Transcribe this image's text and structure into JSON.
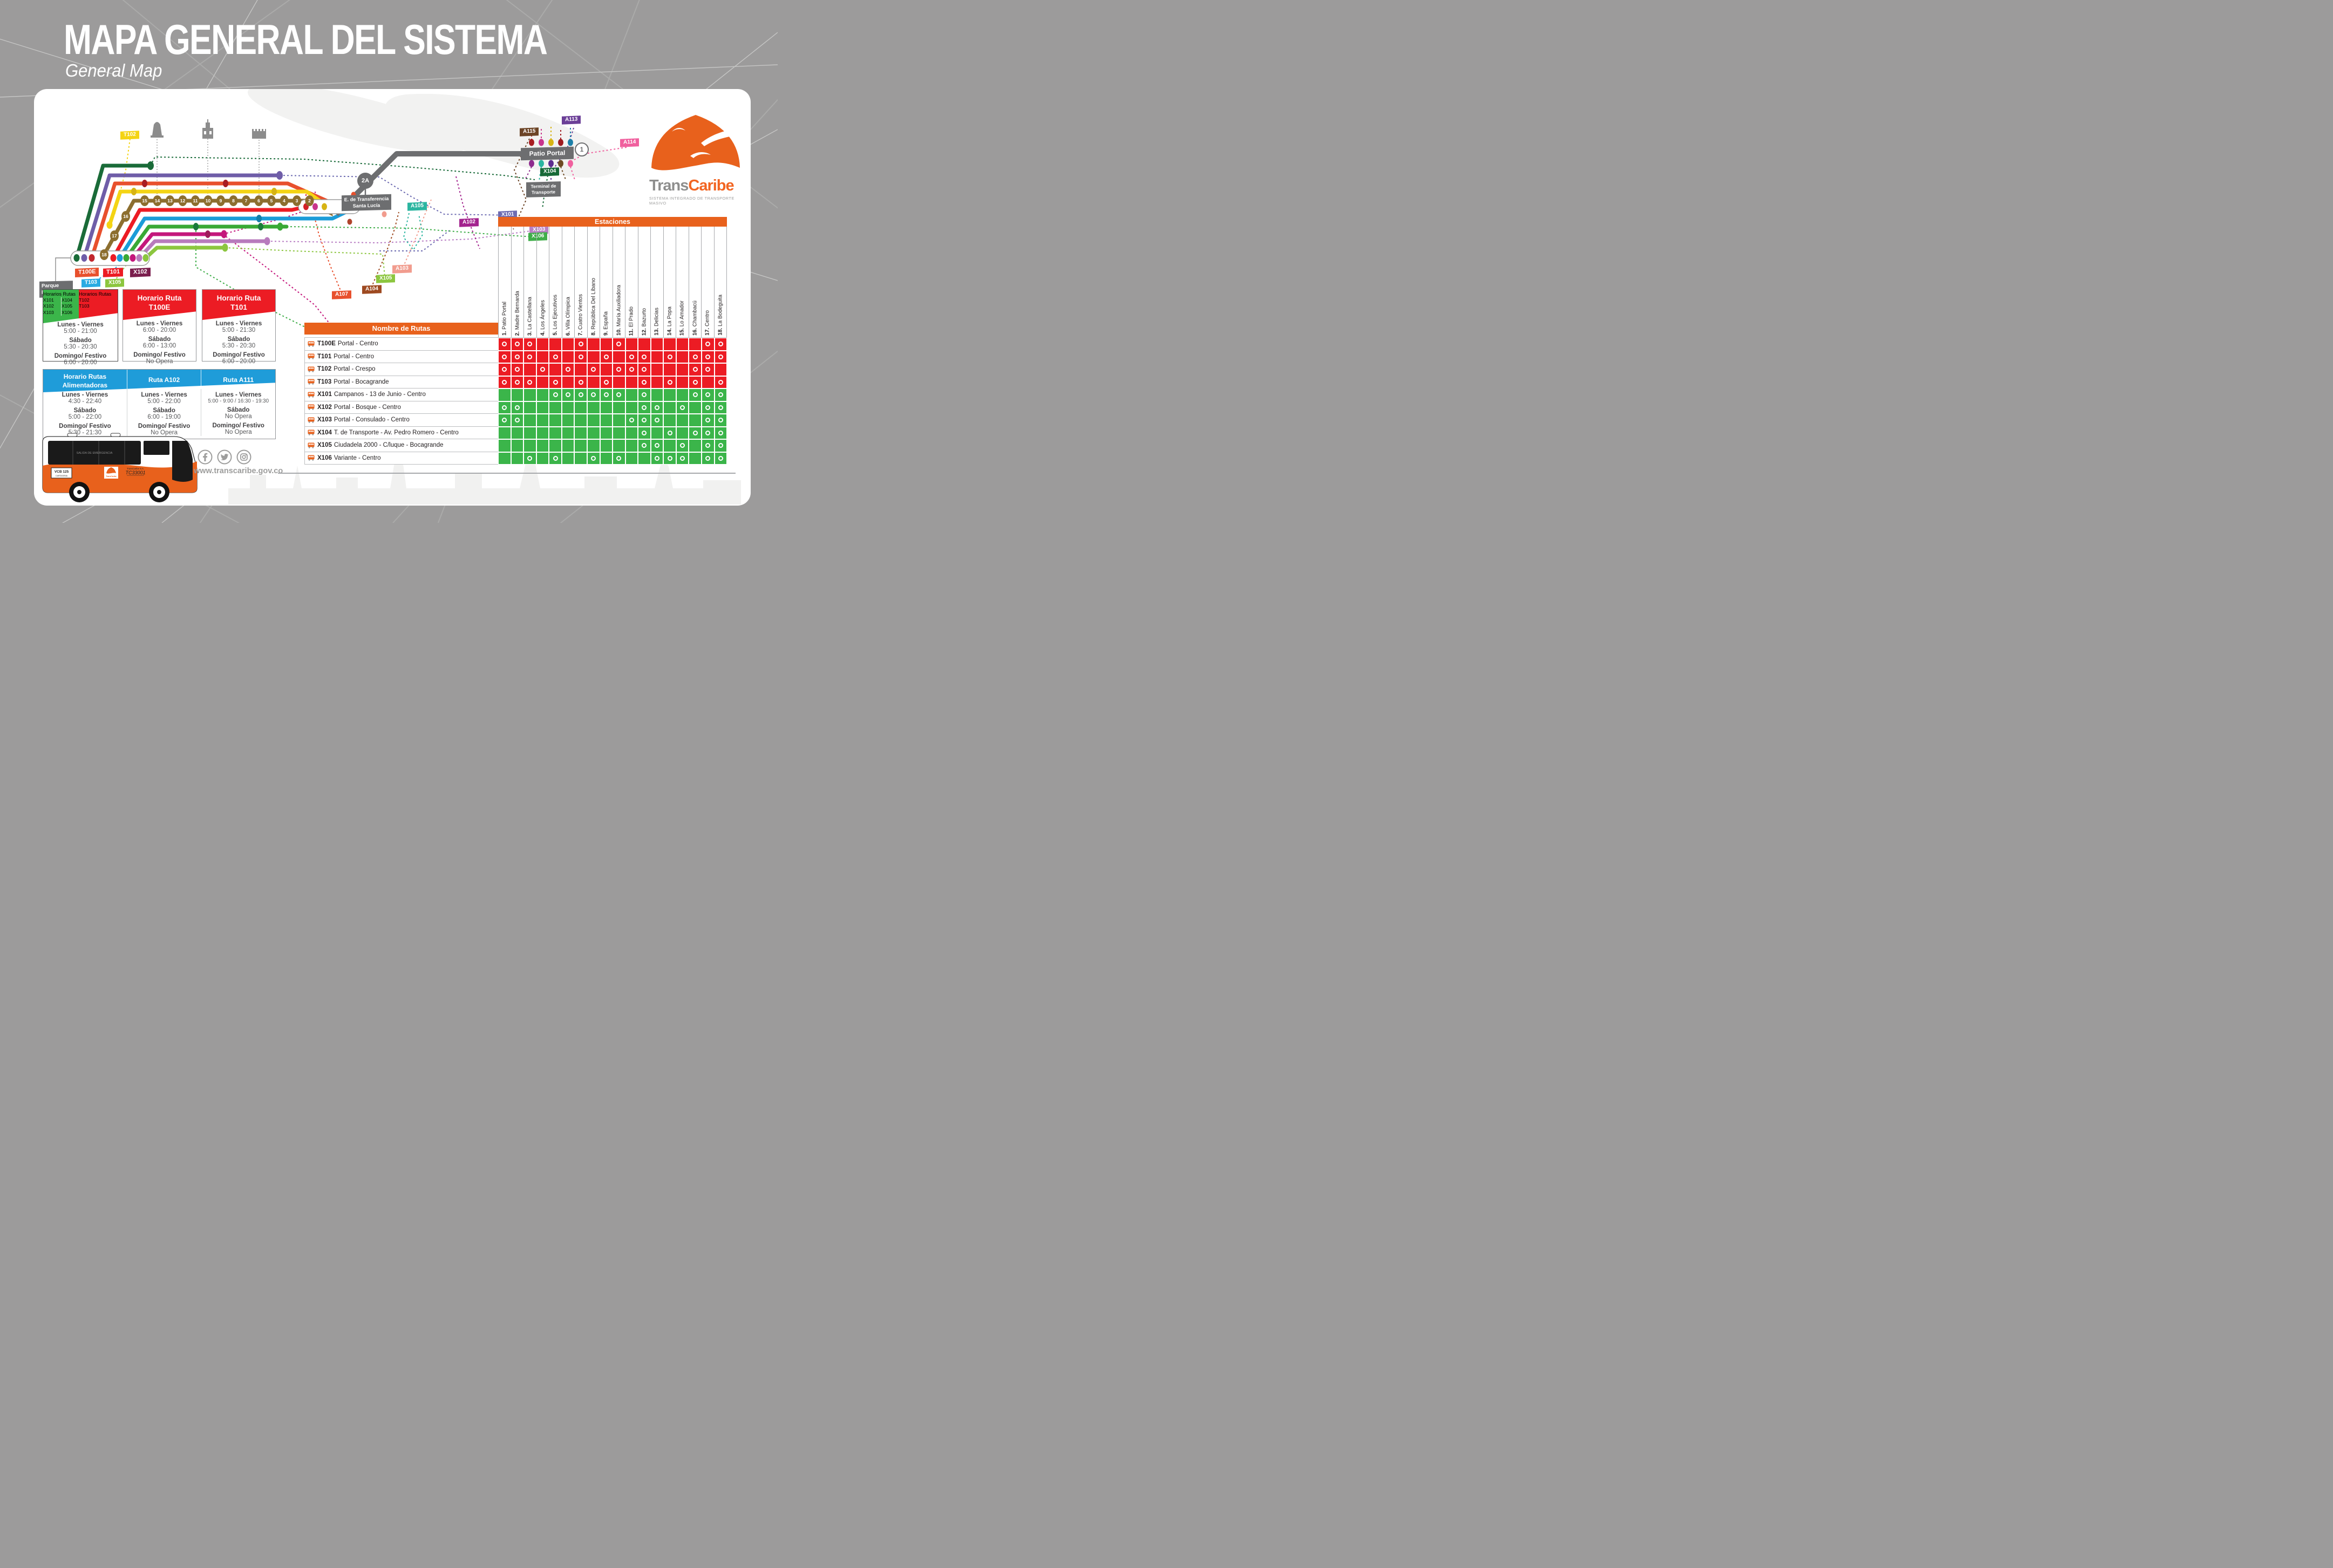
{
  "page": {
    "title": "MAPA GENERAL DEL SISTEMA",
    "subtitle": "General Map"
  },
  "logo": {
    "name_gray": "Trans",
    "name_orange": "Caribe",
    "tagline": "SISTEMA INTEGRADO DE TRANSPORTE MASIVO"
  },
  "map": {
    "place_labels": {
      "patio_portal": "Patio Portal",
      "patio_portal_stop": "1",
      "transfer_stop": "2A",
      "transfer_line1": "E. de Transferencia",
      "transfer_line2": "Santa Lucía",
      "terminal_line1": "Terminal de",
      "terminal_line2": "Transporte",
      "parque_line1": "Parque",
      "parque_line2": "La Marina"
    },
    "terminal_labels": [
      {
        "text": "T100E",
        "color": "#E8502D"
      },
      {
        "text": "T101",
        "color": "#EC1C24"
      },
      {
        "text": "X102",
        "color": "#7A1E4D"
      }
    ],
    "route_tags": [
      {
        "text": "T102",
        "color": "#F4D414"
      },
      {
        "text": "T103",
        "color": "#29ABE2"
      },
      {
        "text": "X105",
        "color": "#8CC63F"
      },
      {
        "text": "A107",
        "color": "#E8502D"
      },
      {
        "text": "A104",
        "color": "#9E4A21"
      },
      {
        "text": "X105",
        "color": "#8CC63F"
      },
      {
        "text": "A103",
        "color": "#F19C8E"
      },
      {
        "text": "A105",
        "color": "#2BB5A0"
      },
      {
        "text": "A102",
        "color": "#A3238E"
      },
      {
        "text": "X101",
        "color": "#6E6CB2"
      },
      {
        "text": "X103",
        "color": "#B97FC4"
      },
      {
        "text": "X106",
        "color": "#3FAE49"
      },
      {
        "text": "A115",
        "color": "#6C4426"
      },
      {
        "text": "A113",
        "color": "#6B3F97"
      },
      {
        "text": "A114",
        "color": "#F0609E"
      },
      {
        "text": "X104",
        "color": "#186A38"
      }
    ],
    "trunk_stations": [
      "2",
      "3",
      "4",
      "5",
      "6",
      "7",
      "8",
      "9",
      "10",
      "11",
      "12",
      "13",
      "14",
      "15",
      "16",
      "17",
      "18"
    ]
  },
  "schedules": {
    "box_multi": {
      "green_title": "Horarios Rutas",
      "green_codes": [
        "X101",
        "X104",
        "X102",
        "X105",
        "X103",
        "X106"
      ],
      "red_title": "Horarios Rutas",
      "red_codes": [
        "T102",
        "T103"
      ],
      "body": [
        [
          "Lunes - Viernes",
          "5:00 - 21:00"
        ],
        [
          "Sábado",
          "5:30 - 20:30"
        ],
        [
          "Domingo/ Festivo",
          "6:00 - 20:00"
        ]
      ]
    },
    "box_t100e": {
      "title1": "Horario Ruta",
      "title2": "T100E",
      "body": [
        [
          "Lunes - Viernes",
          "6:00 - 20:00"
        ],
        [
          "Sábado",
          "6:00 - 13:00"
        ],
        [
          "Domingo/ Festivo",
          "No Opera"
        ]
      ]
    },
    "box_t101": {
      "title1": "Horario Ruta",
      "title2": "T101",
      "body": [
        [
          "Lunes - Viernes",
          "5:00 - 21:30"
        ],
        [
          "Sábado",
          "5:30 - 20:30"
        ],
        [
          "Domingo/ Festivo",
          "6:00 - 20:00"
        ]
      ]
    },
    "box_alim": {
      "cols": [
        {
          "title_l1": "Horario Rutas",
          "title_l2": "Alimentadoras",
          "body": [
            [
              "Lunes - Viernes",
              "4:30 - 22:40"
            ],
            [
              "Sábado",
              "5:00 - 22:00"
            ],
            [
              "Domingo/ Festivo",
              "5:30 - 21:30"
            ]
          ]
        },
        {
          "title_l1": "Ruta A102",
          "title_l2": "",
          "body": [
            [
              "Lunes - Viernes",
              "5:00 - 22:00"
            ],
            [
              "Sábado",
              "6:00 - 19:00"
            ],
            [
              "Domingo/ Festivo",
              "No Opera"
            ]
          ]
        },
        {
          "title_l1": "Ruta A111",
          "title_l2": "",
          "body": [
            [
              "Lunes - Viernes",
              "5:00 - 9:00 / 16:30 - 19:30"
            ],
            [
              "Sábado",
              "No Opera"
            ],
            [
              "Domingo/ Festivo",
              "No Opera"
            ]
          ]
        }
      ]
    }
  },
  "table": {
    "stations_title": "Estaciones",
    "routes_title": "Nombre de Rutas",
    "stations": [
      "Patio Portal",
      "Madre Bernarda",
      "La Castellana",
      "Los Ángeles",
      "Los Ejecutivos",
      "Villa Olímpica",
      "Cuatro Vientos",
      "República Del Líbano",
      "España",
      "María Auxiliadora",
      "El Prado",
      "Bazurto",
      "Delicias",
      "La Popa",
      "Lo Amador",
      "Chambacú",
      "Centro",
      "La Bodeguita"
    ],
    "group_colors": {
      "troncal": "#EC1C24",
      "expresa": "#3BB54A"
    },
    "routes": [
      {
        "code": "T100E",
        "name": "Portal - Centro",
        "group": "troncal",
        "stops": [
          1,
          2,
          3,
          7,
          10,
          17,
          18
        ]
      },
      {
        "code": "T101",
        "name": "Portal - Centro",
        "group": "troncal",
        "stops": [
          1,
          2,
          3,
          5,
          7,
          9,
          11,
          12,
          14,
          16,
          17,
          18
        ]
      },
      {
        "code": "T102",
        "name": "Portal - Crespo",
        "group": "troncal",
        "stops": [
          1,
          2,
          4,
          6,
          8,
          10,
          11,
          12,
          16,
          17
        ]
      },
      {
        "code": "T103",
        "name": "Portal - Bocagrande",
        "group": "troncal",
        "stops": [
          1,
          2,
          3,
          5,
          7,
          9,
          12,
          14,
          16,
          18
        ]
      },
      {
        "code": "X101",
        "name": "Campanos - 13 de Junio - Centro",
        "group": "expresa",
        "stops": [
          5,
          6,
          7,
          8,
          9,
          10,
          12,
          16,
          17,
          18
        ]
      },
      {
        "code": "X102",
        "name": "Portal - Bosque - Centro",
        "group": "expresa",
        "stops": [
          1,
          2,
          12,
          13,
          15,
          17,
          18
        ]
      },
      {
        "code": "X103",
        "name": "Portal - Consulado - Centro",
        "group": "expresa",
        "stops": [
          1,
          2,
          11,
          12,
          13,
          17,
          18
        ]
      },
      {
        "code": "X104",
        "name": "T. de Transporte - Av. Pedro Romero - Centro",
        "group": "expresa",
        "stops": [
          12,
          14,
          16,
          17,
          18
        ]
      },
      {
        "code": "X105",
        "name": "Ciudadela 2000 - C/luque - Bocagrande",
        "group": "expresa",
        "stops": [
          12,
          13,
          15,
          17,
          18
        ]
      },
      {
        "code": "X106",
        "name": "Variante - Centro",
        "group": "expresa",
        "stops": [
          3,
          5,
          8,
          10,
          13,
          14,
          15,
          17,
          18
        ]
      }
    ]
  },
  "bus": {
    "emergency": "SALIDA DE EMERGENCIA",
    "plate_line1": "VCB 125",
    "plate_line2": "CARTAGENA",
    "fleet_label": "TransCaribe S.A.",
    "fleet": "TC33001"
  },
  "footer": {
    "website": "www.transcaribe.gov.co",
    "social": [
      "facebook",
      "twitter",
      "instagram"
    ]
  }
}
